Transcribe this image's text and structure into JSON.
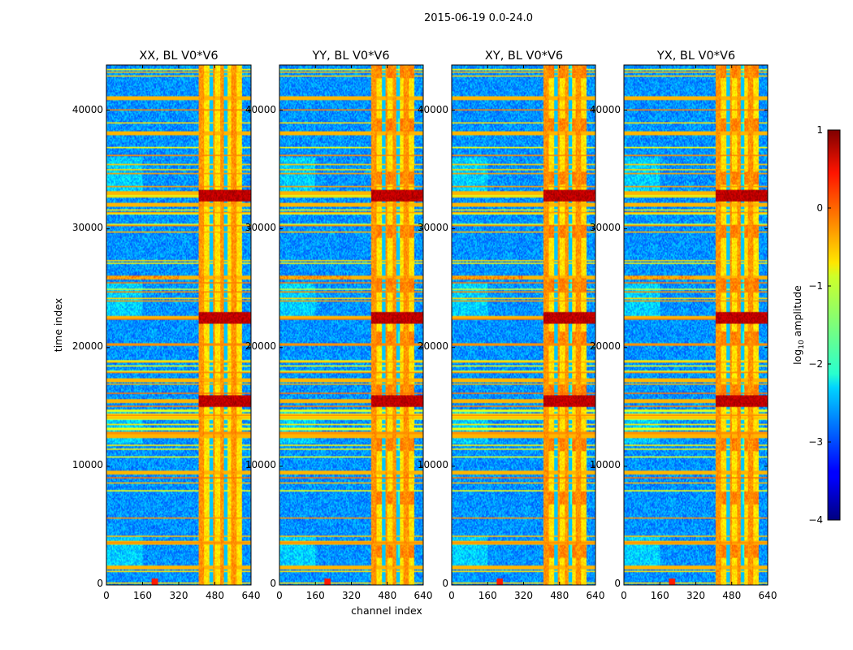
{
  "figure": {
    "suptitle": "2015-06-19 0.0-24.0",
    "xlabel": "channel index",
    "ylabel": "time index"
  },
  "chart_data": {
    "type": "heatmap",
    "colormap": "jet",
    "panels": [
      {
        "title": "XX, BL V0*V6"
      },
      {
        "title": "YY, BL V0*V6"
      },
      {
        "title": "XY, BL V0*V6"
      },
      {
        "title": "YX, BL V0*V6"
      }
    ],
    "x_range": [
      0,
      640
    ],
    "y_range": [
      0,
      43800
    ],
    "x_ticks": [
      "0",
      "160",
      "320",
      "480",
      "640"
    ],
    "x_tick_values": [
      0,
      160,
      320,
      480,
      640
    ],
    "y_ticks": [
      "0",
      "10000",
      "20000",
      "30000",
      "40000"
    ],
    "y_tick_values": [
      0,
      10000,
      20000,
      30000,
      40000
    ],
    "colorbar": {
      "label": "log",
      "label_sub": "10",
      "label_suffix": " amplitude",
      "range": [
        -4,
        1
      ],
      "ticks": [
        "−4",
        "−3",
        "−2",
        "−1",
        "0",
        "1"
      ],
      "tick_values": [
        -4,
        -3,
        -2,
        -1,
        0,
        1
      ]
    },
    "bright_channel_band": [
      405,
      600
    ],
    "notable_time_bands": [
      1500,
      3600,
      9500,
      12500,
      15500,
      17200,
      22500,
      25900,
      32000,
      33000,
      38000,
      41000
    ]
  }
}
